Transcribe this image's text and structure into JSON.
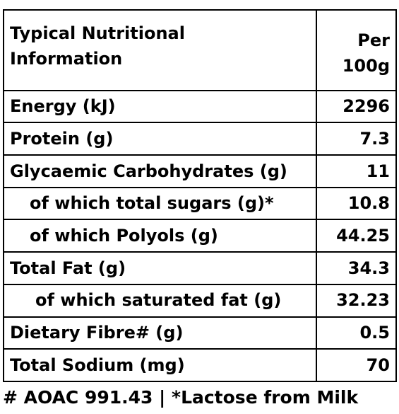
{
  "header": {
    "label_line1": "Typical Nutritional",
    "label_line2": "Information",
    "value_line1": "Per",
    "value_line2": "100g"
  },
  "rows": [
    {
      "label": "Energy (kJ)",
      "value": "2296",
      "indent": 0
    },
    {
      "label": "Protein (g)",
      "value": "7.3",
      "indent": 0
    },
    {
      "label": "Glycaemic Carbohydrates (g)",
      "value": "11",
      "indent": 0
    },
    {
      "label": "of which total sugars (g)*",
      "value": "10.8",
      "indent": 1
    },
    {
      "label": "of which Polyols (g)",
      "value": "44.25",
      "indent": 1
    },
    {
      "label": "Total Fat (g)",
      "value": "34.3",
      "indent": 0
    },
    {
      "label": "of which saturated fat (g)",
      "value": "32.23",
      "indent": 2
    },
    {
      "label": "Dietary Fibre# (g)",
      "value": "0.5",
      "indent": 0
    },
    {
      "label": "Total Sodium (mg)",
      "value": "70",
      "indent": 0
    }
  ],
  "footnote": "# AOAC 991.43 | *Lactose from Milk"
}
